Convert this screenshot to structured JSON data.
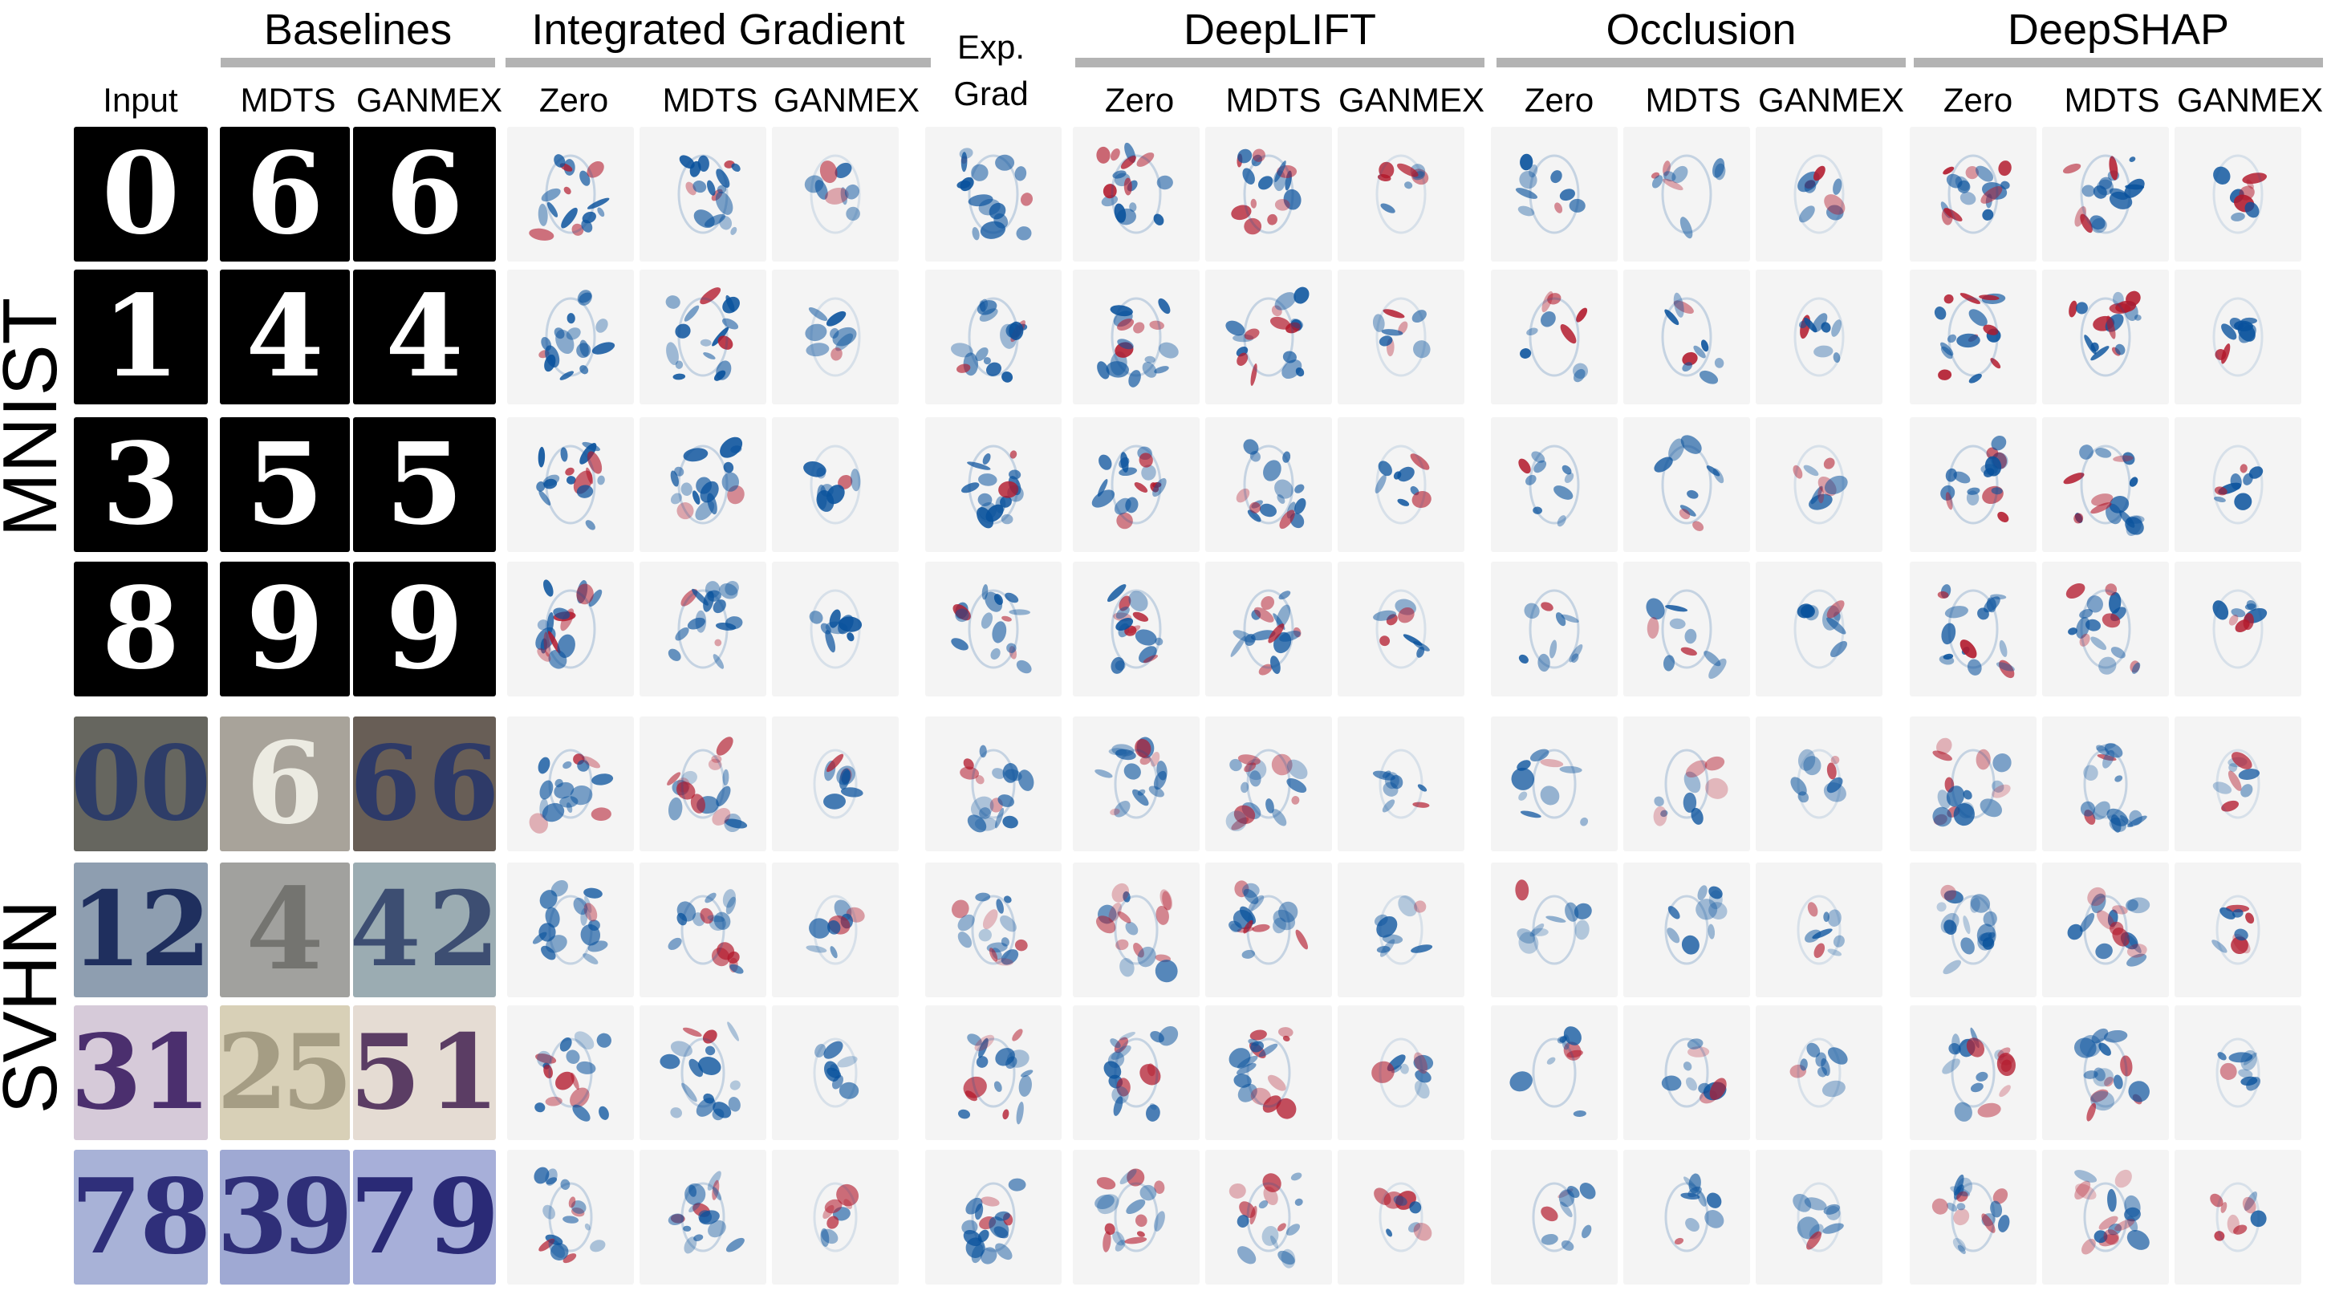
{
  "columns": {
    "input": "Input",
    "zero": "Zero",
    "mdts": "MDTS",
    "ganmex": "GANMEX"
  },
  "groups": {
    "baselines": "Baselines",
    "integrated_gradient": "Integrated Gradient",
    "exp_grad_line1": "Exp.",
    "exp_grad_line2": "Grad",
    "deeplift": "DeepLIFT",
    "occlusion": "Occlusion",
    "deepshap": "DeepSHAP"
  },
  "datasets": {
    "mnist": "MNIST",
    "svhn": "SVHN"
  },
  "rows": [
    {
      "dataset": "mnist",
      "input": "0",
      "mdts": "6",
      "ganmex": "6"
    },
    {
      "dataset": "mnist",
      "input": "1",
      "mdts": "4",
      "ganmex": "4"
    },
    {
      "dataset": "mnist",
      "input": "3",
      "mdts": "5",
      "ganmex": "5"
    },
    {
      "dataset": "mnist",
      "input": "8",
      "mdts": "9",
      "ganmex": "9"
    },
    {
      "dataset": "svhn",
      "input": "00",
      "mdts": "6",
      "ganmex": "66"
    },
    {
      "dataset": "svhn",
      "input": "12",
      "mdts": "4",
      "ganmex": "42"
    },
    {
      "dataset": "svhn",
      "input": "31",
      "mdts": "25",
      "ganmex": "51"
    },
    {
      "dataset": "svhn",
      "input": "78",
      "mdts": "39",
      "ganmex": "79"
    }
  ],
  "colors": {
    "positive": "#08519c",
    "negative": "#b2182b",
    "neutral": "#f4f4f4",
    "mnist_bg": "#000000",
    "mnist_fg": "#ffffff",
    "header_bar": "#b3b3b3"
  },
  "svhn_style": [
    {
      "input": {
        "bg": "#5a5a52",
        "fg": "#2e3d68"
      },
      "mdts": {
        "bg": "#a19c92",
        "fg": "#ecebe2"
      },
      "ganmex": {
        "bg": "#5c5148",
        "fg": "#2e3a68"
      }
    },
    {
      "input": {
        "bg": "#8596aa",
        "fg": "#1f2f5e"
      },
      "mdts": {
        "bg": "#9a9a96",
        "fg": "#747470"
      },
      "ganmex": {
        "bg": "#93a5ac",
        "fg": "#3d4e72"
      }
    },
    {
      "input": {
        "bg": "#d3c6d6",
        "fg": "#4b2f6e"
      },
      "mdts": {
        "bg": "#d5ccb1",
        "fg": "#a59d84"
      },
      "ganmex": {
        "bg": "#e3d9d0",
        "fg": "#5b3d64"
      }
    },
    {
      "input": {
        "bg": "#a1acd4",
        "fg": "#2f2f7a"
      },
      "mdts": {
        "bg": "#97a2d0",
        "fg": "#2f2f78"
      },
      "ganmex": {
        "bg": "#a0a9d6",
        "fg": "#2a2a76"
      }
    }
  ]
}
